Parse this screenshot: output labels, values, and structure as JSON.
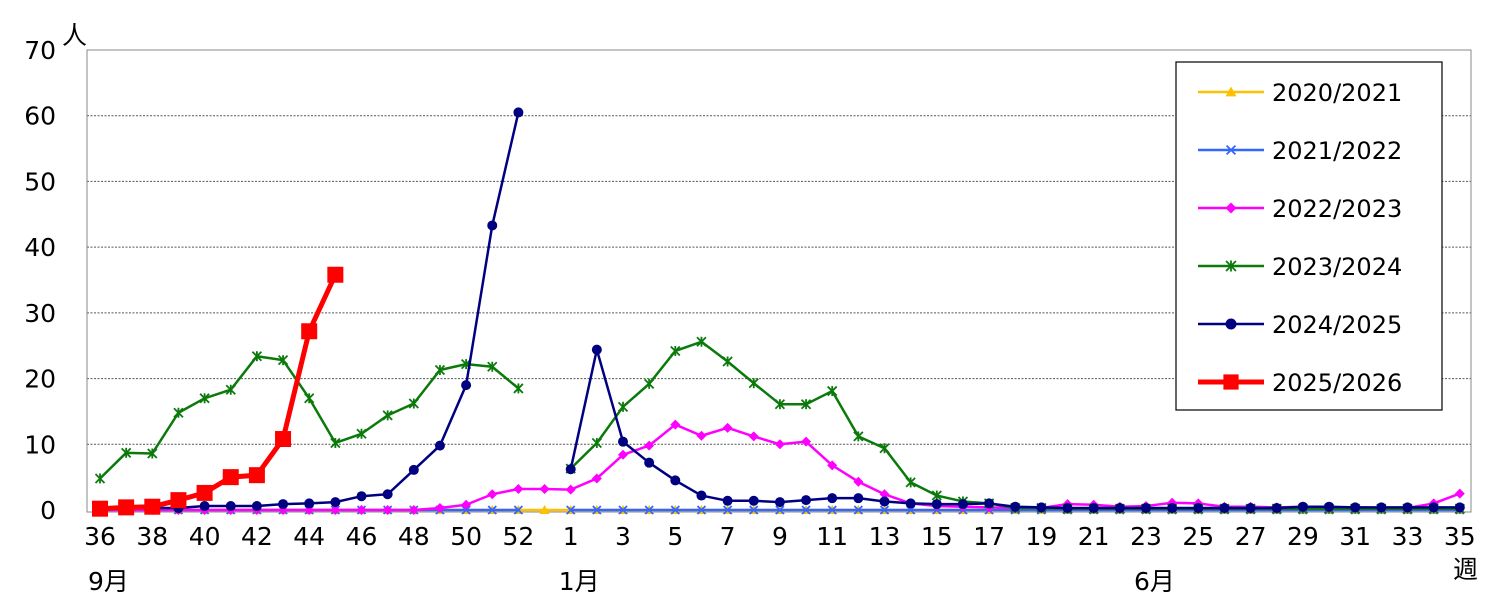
{
  "chart_data": {
    "type": "line",
    "y_unit": "人",
    "x_unit": "週",
    "ylim": [
      0,
      70
    ],
    "yticks": [
      0,
      10,
      20,
      30,
      40,
      50,
      60,
      70
    ],
    "grid": true,
    "legend_position": "top-right",
    "weeks": [
      36,
      37,
      38,
      39,
      40,
      41,
      42,
      43,
      44,
      45,
      46,
      47,
      48,
      49,
      50,
      51,
      52,
      53,
      1,
      2,
      3,
      4,
      5,
      6,
      7,
      8,
      9,
      10,
      11,
      12,
      13,
      14,
      15,
      16,
      17,
      18,
      19,
      20,
      21,
      22,
      23,
      24,
      25,
      26,
      27,
      28,
      29,
      30,
      31,
      32,
      33,
      34,
      35
    ],
    "x_tick_labels": [
      "36",
      "38",
      "40",
      "42",
      "44",
      "46",
      "48",
      "50",
      "52",
      "1",
      "3",
      "5",
      "7",
      "9",
      "11",
      "13",
      "15",
      "17",
      "19",
      "21",
      "23",
      "25",
      "27",
      "29",
      "31",
      "33",
      "35"
    ],
    "month_labels": [
      {
        "week": 36,
        "text": "9月"
      },
      {
        "week": 1,
        "text": "1月"
      },
      {
        "week": 23,
        "text": "6月"
      }
    ],
    "series": [
      {
        "name": "2020/2021",
        "color": "#FFC000",
        "marker": "triangle",
        "values": [
          0,
          0,
          0,
          0,
          0,
          0,
          0,
          0,
          0,
          0,
          0,
          0,
          0,
          0,
          0,
          0,
          0,
          0,
          0,
          0,
          0,
          0,
          0,
          0,
          0,
          0,
          0,
          0,
          0,
          0,
          0,
          0,
          0,
          0,
          0,
          0,
          0,
          0,
          0,
          0,
          0,
          0,
          0,
          0,
          0,
          0,
          0,
          0,
          0,
          0,
          0,
          0,
          0
        ]
      },
      {
        "name": "2021/2022",
        "color": "#3366FF",
        "marker": "x",
        "values": [
          0,
          0,
          0,
          0,
          0,
          0,
          0,
          0,
          0,
          0,
          0,
          0,
          0,
          0,
          0,
          0,
          0,
          null,
          0,
          0,
          0,
          0,
          0,
          0,
          0,
          0,
          0,
          0,
          0,
          0,
          0,
          0,
          0,
          0,
          0,
          0,
          0,
          0,
          0,
          0,
          0,
          0,
          0,
          0,
          0,
          0,
          0,
          0,
          0,
          0,
          0,
          0,
          0
        ]
      },
      {
        "name": "2022/2023",
        "color": "#FF00FF",
        "marker": "diamond",
        "values": [
          0,
          0,
          0,
          0,
          0,
          0,
          0,
          0,
          0,
          0,
          0,
          0,
          0,
          0.3,
          0.8,
          2.4,
          3.2,
          3.2,
          3.1,
          4.8,
          8.4,
          9.8,
          13,
          11.3,
          12.5,
          11.2,
          10,
          10.4,
          6.8,
          4.3,
          2.4,
          1,
          0.6,
          0.5,
          0.4,
          0.3,
          0.3,
          0.9,
          0.8,
          0.5,
          0.6,
          1.1,
          1,
          0.5,
          0.5,
          0.4,
          0.5,
          0.4,
          0.4,
          0.3,
          0.3,
          1,
          2.5
        ]
      },
      {
        "name": "2023/2024",
        "color": "#0A7A0A",
        "marker": "star",
        "values": [
          4.8,
          8.7,
          8.6,
          14.8,
          17,
          18.3,
          23.4,
          22.8,
          17,
          10.2,
          11.6,
          14.4,
          16.2,
          21.3,
          22.2,
          21.8,
          18.5,
          null,
          6.3,
          10.2,
          15.7,
          19.2,
          24.2,
          25.6,
          22.6,
          19.3,
          16.1,
          16.1,
          18.1,
          11.2,
          9.4,
          4.2,
          2.2,
          1.3,
          1,
          0.3,
          0.3,
          0.2,
          0.2,
          0.2,
          0.2,
          0.2,
          0.2,
          0.2,
          0.2,
          0.2,
          0.2,
          0.2,
          0.2,
          0.2,
          0.2,
          0.2,
          0.2
        ]
      },
      {
        "name": "2024/2025",
        "color": "#000080",
        "marker": "circle",
        "values": [
          0.3,
          0.3,
          0.3,
          0.3,
          0.6,
          0.6,
          0.6,
          0.9,
          1,
          1.2,
          2.1,
          2.4,
          6.1,
          9.8,
          19,
          43.3,
          60.5,
          null,
          6.2,
          24.4,
          10.4,
          7.2,
          4.5,
          2.2,
          1.4,
          1.4,
          1.2,
          1.5,
          1.8,
          1.8,
          1.3,
          1,
          0.9,
          0.9,
          1,
          0.5,
          0.4,
          0.3,
          0.3,
          0.3,
          0.3,
          0.3,
          0.3,
          0.3,
          0.3,
          0.3,
          0.5,
          0.5,
          0.4,
          0.4,
          0.4,
          0.4,
          0.4
        ]
      },
      {
        "name": "2025/2026",
        "color": "#FF0000",
        "marker": "square",
        "values": [
          0.2,
          0.4,
          0.5,
          1.5,
          2.6,
          5,
          5.3,
          10.8,
          27.2,
          35.8
        ]
      }
    ]
  }
}
